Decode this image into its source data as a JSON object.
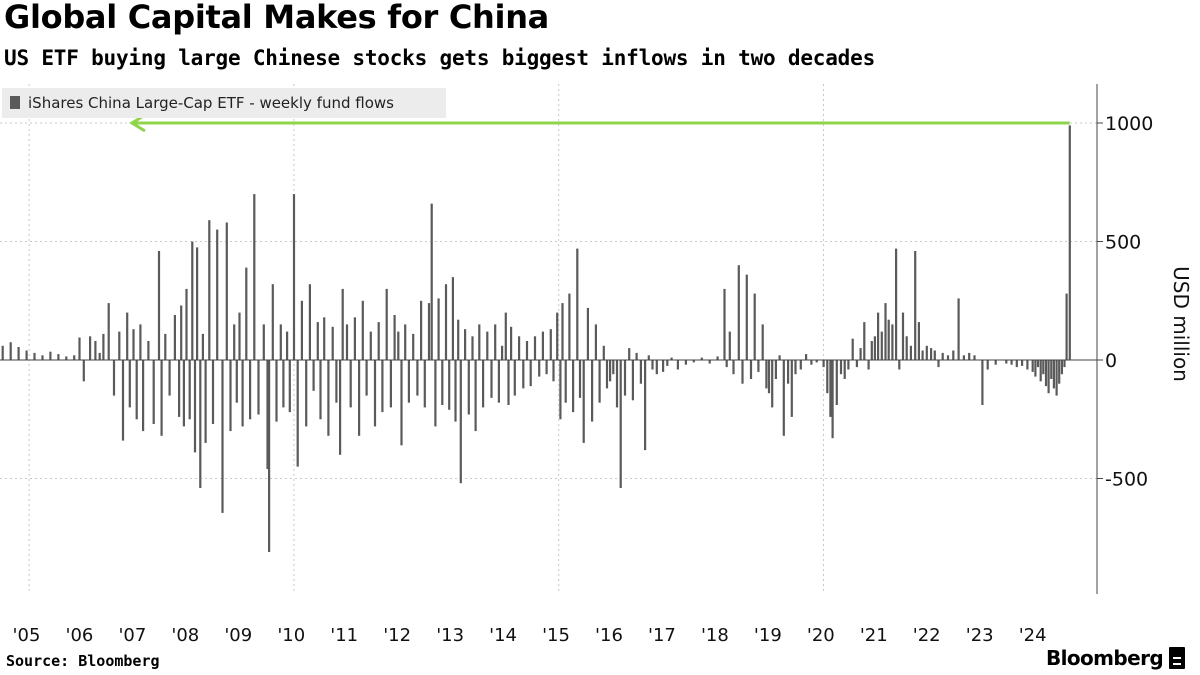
{
  "header": {
    "title": "Global Capital Makes for China",
    "subtitle": "US ETF buying large Chinese stocks gets biggest inflows in two decades"
  },
  "footer": {
    "source": "Source: Bloomberg",
    "brand": "Bloomberg"
  },
  "colors": {
    "bar": "#5a5a5a",
    "arrow": "#8fd44a",
    "legend_bg": "#ececec",
    "grid": "#c8c8c8",
    "axis": "#444444"
  },
  "chart_data": {
    "type": "bar",
    "title": "Global Capital Makes for China",
    "subtitle": "US ETF buying large Chinese stocks gets biggest inflows in two decades",
    "ylabel": "USD million",
    "xlabel": "",
    "ylim": [
      -1000,
      1150
    ],
    "yticks": [
      1000,
      500,
      0,
      -500
    ],
    "ytick_labels": [
      "1000",
      "500",
      "0",
      "-500"
    ],
    "grid": true,
    "legend_position": "top-left",
    "legend": [
      "iShares China Large-Cap ETF - weekly fund flows"
    ],
    "x_axis": {
      "start_year": 2004.5,
      "end_year": 2024.8
    },
    "categories": [
      "'05",
      "'06",
      "'07",
      "'08",
      "'09",
      "'10",
      "'11",
      "'12",
      "'13",
      "'14",
      "'15",
      "'16",
      "'17",
      "'18",
      "'19",
      "'20",
      "'21",
      "'22",
      "'23",
      "'24"
    ],
    "category_years": [
      2005,
      2006,
      2007,
      2008,
      2009,
      2010,
      2011,
      2012,
      2013,
      2014,
      2015,
      2016,
      2017,
      2018,
      2019,
      2020,
      2021,
      2022,
      2023,
      2024
    ],
    "annotation": {
      "type": "arrow",
      "value": 1000,
      "note": "record weekly inflow line"
    },
    "series": [
      {
        "name": "iShares China Large-Cap ETF - weekly fund flows",
        "x_unit": "year (decimal)",
        "points": [
          [
            2004.55,
            60
          ],
          [
            2004.7,
            75
          ],
          [
            2004.85,
            55
          ],
          [
            2005.0,
            40
          ],
          [
            2005.15,
            30
          ],
          [
            2005.3,
            20
          ],
          [
            2005.45,
            35
          ],
          [
            2005.6,
            25
          ],
          [
            2005.75,
            15
          ],
          [
            2005.9,
            20
          ],
          [
            2006.0,
            95
          ],
          [
            2006.08,
            -90
          ],
          [
            2006.2,
            100
          ],
          [
            2006.3,
            80
          ],
          [
            2006.38,
            30
          ],
          [
            2006.45,
            110
          ],
          [
            2006.55,
            240
          ],
          [
            2006.65,
            -150
          ],
          [
            2006.75,
            120
          ],
          [
            2006.82,
            -340
          ],
          [
            2006.9,
            200
          ],
          [
            2006.95,
            -200
          ],
          [
            2007.02,
            130
          ],
          [
            2007.08,
            -250
          ],
          [
            2007.15,
            150
          ],
          [
            2007.2,
            -300
          ],
          [
            2007.3,
            80
          ],
          [
            2007.4,
            -270
          ],
          [
            2007.5,
            460
          ],
          [
            2007.55,
            -320
          ],
          [
            2007.62,
            110
          ],
          [
            2007.7,
            -150
          ],
          [
            2007.8,
            190
          ],
          [
            2007.88,
            -240
          ],
          [
            2007.92,
            230
          ],
          [
            2007.97,
            -280
          ],
          [
            2008.02,
            300
          ],
          [
            2008.08,
            -250
          ],
          [
            2008.13,
            500
          ],
          [
            2008.18,
            -390
          ],
          [
            2008.22,
            475
          ],
          [
            2008.28,
            -540
          ],
          [
            2008.33,
            110
          ],
          [
            2008.38,
            -350
          ],
          [
            2008.45,
            590
          ],
          [
            2008.52,
            -270
          ],
          [
            2008.6,
            550
          ],
          [
            2008.7,
            -645
          ],
          [
            2008.78,
            580
          ],
          [
            2008.85,
            -300
          ],
          [
            2008.92,
            150
          ],
          [
            2008.97,
            -180
          ],
          [
            2009.02,
            200
          ],
          [
            2009.08,
            -280
          ],
          [
            2009.15,
            390
          ],
          [
            2009.22,
            -250
          ],
          [
            2009.3,
            700
          ],
          [
            2009.38,
            -230
          ],
          [
            2009.48,
            150
          ],
          [
            2009.55,
            -460
          ],
          [
            2009.58,
            -810
          ],
          [
            2009.65,
            320
          ],
          [
            2009.72,
            -260
          ],
          [
            2009.8,
            150
          ],
          [
            2009.85,
            -200
          ],
          [
            2009.92,
            120
          ],
          [
            2009.97,
            -220
          ],
          [
            2010.05,
            700
          ],
          [
            2010.12,
            -450
          ],
          [
            2010.2,
            250
          ],
          [
            2010.28,
            -280
          ],
          [
            2010.35,
            320
          ],
          [
            2010.42,
            -130
          ],
          [
            2010.5,
            160
          ],
          [
            2010.55,
            -250
          ],
          [
            2010.62,
            180
          ],
          [
            2010.7,
            -320
          ],
          [
            2010.78,
            140
          ],
          [
            2010.85,
            -180
          ],
          [
            2010.92,
            -400
          ],
          [
            2010.97,
            300
          ],
          [
            2011.05,
            150
          ],
          [
            2011.12,
            -200
          ],
          [
            2011.2,
            180
          ],
          [
            2011.28,
            -320
          ],
          [
            2011.35,
            250
          ],
          [
            2011.42,
            -150
          ],
          [
            2011.5,
            120
          ],
          [
            2011.58,
            -280
          ],
          [
            2011.65,
            160
          ],
          [
            2011.72,
            -220
          ],
          [
            2011.8,
            300
          ],
          [
            2011.88,
            -200
          ],
          [
            2011.95,
            190
          ],
          [
            2012.02,
            120
          ],
          [
            2012.08,
            -360
          ],
          [
            2012.15,
            150
          ],
          [
            2012.22,
            -180
          ],
          [
            2012.3,
            110
          ],
          [
            2012.38,
            -150
          ],
          [
            2012.45,
            250
          ],
          [
            2012.52,
            -200
          ],
          [
            2012.6,
            240
          ],
          [
            2012.65,
            660
          ],
          [
            2012.72,
            -280
          ],
          [
            2012.78,
            260
          ],
          [
            2012.85,
            -190
          ],
          [
            2012.92,
            320
          ],
          [
            2012.98,
            -210
          ],
          [
            2013.05,
            350
          ],
          [
            2013.1,
            -260
          ],
          [
            2013.15,
            170
          ],
          [
            2013.2,
            -520
          ],
          [
            2013.28,
            130
          ],
          [
            2013.35,
            -230
          ],
          [
            2013.42,
            100
          ],
          [
            2013.48,
            -300
          ],
          [
            2013.55,
            150
          ],
          [
            2013.62,
            -200
          ],
          [
            2013.7,
            120
          ],
          [
            2013.78,
            -160
          ],
          [
            2013.85,
            150
          ],
          [
            2013.92,
            -180
          ],
          [
            2013.98,
            60
          ],
          [
            2014.05,
            200
          ],
          [
            2014.1,
            -190
          ],
          [
            2014.15,
            140
          ],
          [
            2014.22,
            -150
          ],
          [
            2014.3,
            100
          ],
          [
            2014.38,
            -120
          ],
          [
            2014.45,
            80
          ],
          [
            2014.52,
            -110
          ],
          [
            2014.6,
            100
          ],
          [
            2014.68,
            -70
          ],
          [
            2014.75,
            120
          ],
          [
            2014.82,
            -60
          ],
          [
            2014.9,
            130
          ],
          [
            2014.95,
            -90
          ],
          [
            2015.02,
            200
          ],
          [
            2015.08,
            -250
          ],
          [
            2015.12,
            240
          ],
          [
            2015.18,
            -180
          ],
          [
            2015.25,
            280
          ],
          [
            2015.32,
            -220
          ],
          [
            2015.4,
            470
          ],
          [
            2015.45,
            -160
          ],
          [
            2015.52,
            -350
          ],
          [
            2015.6,
            220
          ],
          [
            2015.68,
            -260
          ],
          [
            2015.75,
            150
          ],
          [
            2015.82,
            -180
          ],
          [
            2015.9,
            60
          ],
          [
            2015.96,
            -120
          ],
          [
            2016.02,
            -90
          ],
          [
            2016.08,
            -60
          ],
          [
            2016.15,
            -200
          ],
          [
            2016.22,
            -540
          ],
          [
            2016.3,
            -150
          ],
          [
            2016.38,
            50
          ],
          [
            2016.45,
            -170
          ],
          [
            2016.52,
            30
          ],
          [
            2016.6,
            -100
          ],
          [
            2016.68,
            -380
          ],
          [
            2016.75,
            20
          ],
          [
            2016.82,
            -40
          ],
          [
            2016.9,
            -60
          ],
          [
            2017.02,
            -50
          ],
          [
            2017.1,
            -25
          ],
          [
            2017.18,
            10
          ],
          [
            2017.3,
            -40
          ],
          [
            2017.45,
            -20
          ],
          [
            2017.6,
            -10
          ],
          [
            2017.75,
            10
          ],
          [
            2017.9,
            -15
          ],
          [
            2018.05,
            15
          ],
          [
            2018.18,
            300
          ],
          [
            2018.22,
            -30
          ],
          [
            2018.28,
            120
          ],
          [
            2018.35,
            -60
          ],
          [
            2018.45,
            400
          ],
          [
            2018.52,
            -100
          ],
          [
            2018.6,
            360
          ],
          [
            2018.68,
            -80
          ],
          [
            2018.75,
            280
          ],
          [
            2018.82,
            -50
          ],
          [
            2018.9,
            150
          ],
          [
            2018.97,
            -120
          ],
          [
            2019.02,
            -140
          ],
          [
            2019.08,
            -200
          ],
          [
            2019.15,
            -80
          ],
          [
            2019.22,
            20
          ],
          [
            2019.3,
            -320
          ],
          [
            2019.38,
            -100
          ],
          [
            2019.45,
            -240
          ],
          [
            2019.52,
            -60
          ],
          [
            2019.62,
            -40
          ],
          [
            2019.72,
            25
          ],
          [
            2019.82,
            -20
          ],
          [
            2019.92,
            -10
          ],
          [
            2020.05,
            -30
          ],
          [
            2020.12,
            -140
          ],
          [
            2020.18,
            -240
          ],
          [
            2020.22,
            -330
          ],
          [
            2020.3,
            -190
          ],
          [
            2020.38,
            -60
          ],
          [
            2020.45,
            -80
          ],
          [
            2020.52,
            -40
          ],
          [
            2020.6,
            90
          ],
          [
            2020.68,
            -30
          ],
          [
            2020.75,
            50
          ],
          [
            2020.82,
            160
          ],
          [
            2020.9,
            -40
          ],
          [
            2020.96,
            80
          ],
          [
            2021.02,
            100
          ],
          [
            2021.08,
            200
          ],
          [
            2021.15,
            120
          ],
          [
            2021.22,
            240
          ],
          [
            2021.28,
            170
          ],
          [
            2021.35,
            150
          ],
          [
            2021.42,
            470
          ],
          [
            2021.48,
            -40
          ],
          [
            2021.55,
            200
          ],
          [
            2021.62,
            100
          ],
          [
            2021.7,
            60
          ],
          [
            2021.78,
            460
          ],
          [
            2021.85,
            160
          ],
          [
            2021.92,
            40
          ],
          [
            2022.0,
            60
          ],
          [
            2022.08,
            50
          ],
          [
            2022.15,
            40
          ],
          [
            2022.22,
            -30
          ],
          [
            2022.3,
            30
          ],
          [
            2022.4,
            20
          ],
          [
            2022.5,
            40
          ],
          [
            2022.6,
            260
          ],
          [
            2022.7,
            20
          ],
          [
            2022.8,
            30
          ],
          [
            2022.9,
            20
          ],
          [
            2023.05,
            -190
          ],
          [
            2023.15,
            -40
          ],
          [
            2023.3,
            -20
          ],
          [
            2023.5,
            -15
          ],
          [
            2023.6,
            -20
          ],
          [
            2023.7,
            -30
          ],
          [
            2023.8,
            -25
          ],
          [
            2023.9,
            -40
          ],
          [
            2024.0,
            -50
          ],
          [
            2024.05,
            -70
          ],
          [
            2024.1,
            -30
          ],
          [
            2024.15,
            -90
          ],
          [
            2024.2,
            -60
          ],
          [
            2024.25,
            -110
          ],
          [
            2024.3,
            -140
          ],
          [
            2024.35,
            -80
          ],
          [
            2024.4,
            -120
          ],
          [
            2024.45,
            -150
          ],
          [
            2024.5,
            -100
          ],
          [
            2024.55,
            -60
          ],
          [
            2024.6,
            -30
          ],
          [
            2024.64,
            280
          ],
          [
            2024.7,
            990
          ]
        ]
      }
    ]
  }
}
